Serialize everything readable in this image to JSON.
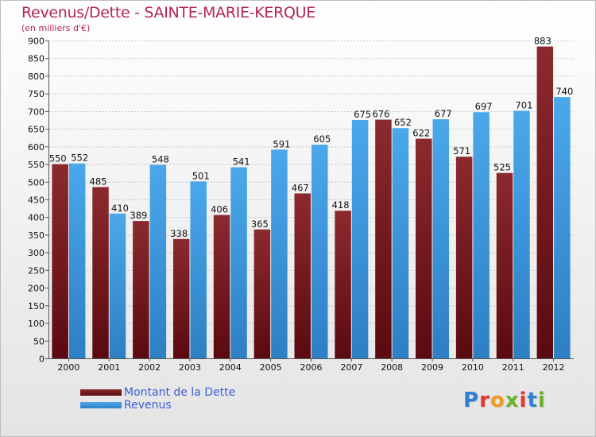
{
  "header": {
    "title": "Revenus/Dette - SAINTE-MARIE-KERQUE",
    "subtitle": "(en milliers d'€)"
  },
  "chart_data": {
    "type": "bar",
    "title": "Revenus/Dette - SAINTE-MARIE-KERQUE",
    "ylabel": "(en milliers d'€)",
    "xlabel": "",
    "ylim": [
      0,
      900
    ],
    "ytick_step": 50,
    "grid": true,
    "categories": [
      "2000",
      "2001",
      "2002",
      "2003",
      "2004",
      "2005",
      "2006",
      "2007",
      "2008",
      "2009",
      "2010",
      "2011",
      "2012"
    ],
    "series": [
      {
        "name": "Montant de la Dette",
        "color": "#6b0f16",
        "values": [
          550,
          485,
          389,
          338,
          406,
          365,
          467,
          418,
          676,
          622,
          571,
          525,
          883
        ]
      },
      {
        "name": "Revenus",
        "color": "#3d9be0",
        "values": [
          552,
          410,
          548,
          501,
          541,
          591,
          605,
          675,
          652,
          677,
          697,
          701,
          740
        ]
      }
    ]
  },
  "legend": {
    "debt_label": "Montant de la Dette",
    "revenue_label": "Revenus"
  },
  "branding": {
    "logo_text": "Proxiti"
  }
}
